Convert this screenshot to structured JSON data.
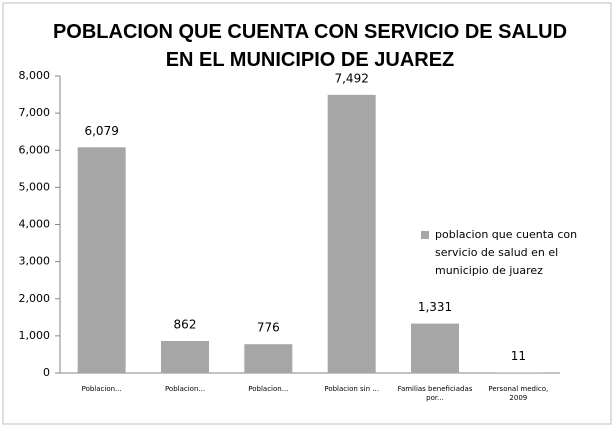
{
  "chart_data": {
    "type": "bar",
    "title": "POBLACION QUE CUENTA CON SERVICIO DE SALUD EN EL MUNICIPIO DE JUAREZ",
    "categories": [
      "Poblacion...",
      "Poblacion...",
      "Poblacion...",
      "Poblacion sin ...",
      "Familias beneficiadas por...",
      "Personal medico, 2009"
    ],
    "series": [
      {
        "name": "poblacion que cuenta con servicio de salud en el municipio de juarez",
        "color": "#a6a6a6",
        "values": [
          6079,
          862,
          776,
          7492,
          1331,
          11
        ],
        "value_labels": [
          "6,079",
          "862",
          "776",
          "7,492",
          "1,331",
          "11"
        ]
      }
    ],
    "ylim": [
      0,
      8000
    ],
    "yticks": [
      0,
      {
        "value": 1000,
        "label": "1,000"
      },
      {
        "value": 2000,
        "label": "2,000"
      },
      {
        "value": 3000,
        "label": "3,000"
      },
      {
        "value": 4000,
        "label": "4,000"
      },
      {
        "value": 5000,
        "label": "5,000"
      },
      {
        "value": 6000,
        "label": "6,000"
      },
      {
        "value": 7000,
        "label": "7,000"
      },
      {
        "value": 8000,
        "label": "8,000"
      }
    ],
    "grid": false,
    "legend": "right"
  }
}
